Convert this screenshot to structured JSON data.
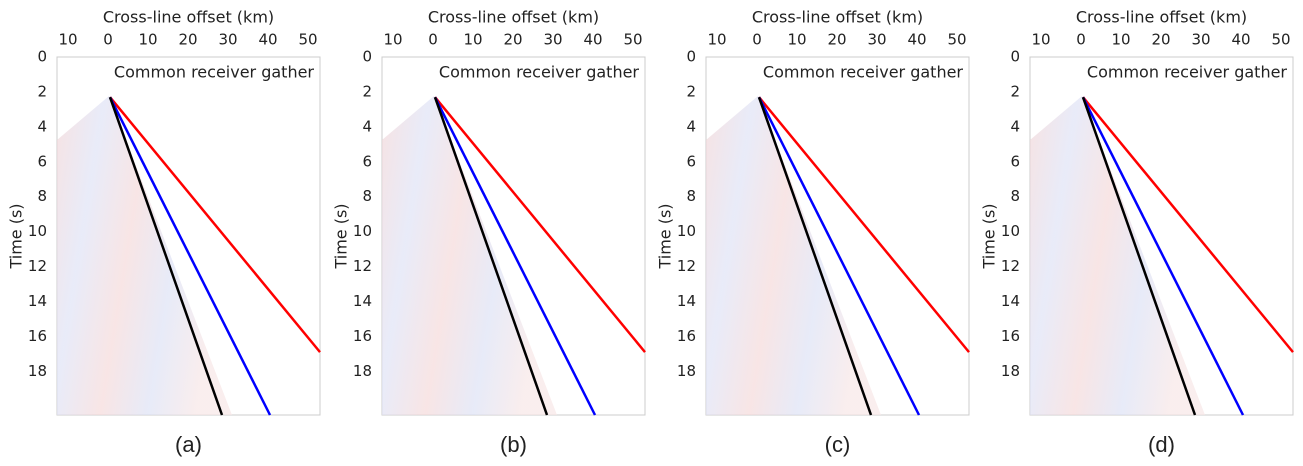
{
  "chart_data": [
    {
      "type": "line",
      "xlabel": "Cross-line offset (km)",
      "ylabel": "Time (s)",
      "annotation": "Common receiver gather",
      "caption": "(a)",
      "xlim": [
        -12.75,
        53
      ],
      "ylim": [
        0,
        20.5
      ],
      "xticks": [
        {
          "value": -10,
          "label": "10"
        },
        0,
        10,
        20,
        30,
        40,
        50
      ],
      "yticks": [
        0,
        2,
        4,
        6,
        8,
        10,
        12,
        14,
        16,
        18
      ],
      "series": [
        {
          "color": "#ff0000",
          "x": [
            0.5,
            53
          ],
          "values": [
            2.3,
            16.9
          ]
        },
        {
          "color": "#0000ff",
          "x": [
            0.5,
            40.5
          ],
          "values": [
            2.3,
            20.5
          ]
        },
        {
          "color": "#000000",
          "x": [
            0.5,
            28.5
          ],
          "values": [
            2.3,
            20.5
          ]
        }
      ]
    },
    {
      "type": "line",
      "xlabel": "Cross-line offset (km)",
      "ylabel": "Time (s)",
      "annotation": "Common receiver gather",
      "caption": "(b)",
      "xlim": [
        -12.75,
        53
      ],
      "ylim": [
        0,
        20.5
      ],
      "xticks": [
        {
          "value": -10,
          "label": "10"
        },
        0,
        10,
        20,
        30,
        40,
        50
      ],
      "yticks": [
        0,
        2,
        4,
        6,
        8,
        10,
        12,
        14,
        16,
        18
      ],
      "series": [
        {
          "color": "#ff0000",
          "x": [
            0.5,
            53
          ],
          "values": [
            2.3,
            16.9
          ]
        },
        {
          "color": "#0000ff",
          "x": [
            0.5,
            40.5
          ],
          "values": [
            2.3,
            20.5
          ]
        },
        {
          "color": "#000000",
          "x": [
            0.5,
            28.5
          ],
          "values": [
            2.3,
            20.5
          ]
        }
      ]
    },
    {
      "type": "line",
      "xlabel": "Cross-line offset (km)",
      "ylabel": "Time (s)",
      "annotation": "Common receiver gather",
      "caption": "(c)",
      "xlim": [
        -12.75,
        53
      ],
      "ylim": [
        0,
        20.5
      ],
      "xticks": [
        {
          "value": -10,
          "label": "10"
        },
        0,
        10,
        20,
        30,
        40,
        50
      ],
      "yticks": [
        0,
        2,
        4,
        6,
        8,
        10,
        12,
        14,
        16,
        18
      ],
      "series": [
        {
          "color": "#ff0000",
          "x": [
            0.5,
            53
          ],
          "values": [
            2.3,
            16.9
          ]
        },
        {
          "color": "#0000ff",
          "x": [
            0.5,
            40.5
          ],
          "values": [
            2.3,
            20.5
          ]
        },
        {
          "color": "#000000",
          "x": [
            0.5,
            28.5
          ],
          "values": [
            2.3,
            20.5
          ]
        }
      ]
    },
    {
      "type": "line",
      "xlabel": "Cross-line offset (km)",
      "ylabel": "Time (s)",
      "annotation": "Common receiver gather",
      "caption": "(d)",
      "xlim": [
        -12.75,
        53
      ],
      "ylim": [
        0,
        20.5
      ],
      "xticks": [
        {
          "value": -10,
          "label": "10"
        },
        0,
        10,
        20,
        30,
        40,
        50
      ],
      "yticks": [
        0,
        2,
        4,
        6,
        8,
        10,
        12,
        14,
        16,
        18
      ],
      "series": [
        {
          "color": "#ff0000",
          "x": [
            0.5,
            53
          ],
          "values": [
            2.3,
            16.9
          ]
        },
        {
          "color": "#0000ff",
          "x": [
            0.5,
            40.5
          ],
          "values": [
            2.3,
            20.5
          ]
        },
        {
          "color": "#000000",
          "x": [
            0.5,
            28.5
          ],
          "values": [
            2.3,
            20.5
          ]
        }
      ]
    }
  ]
}
